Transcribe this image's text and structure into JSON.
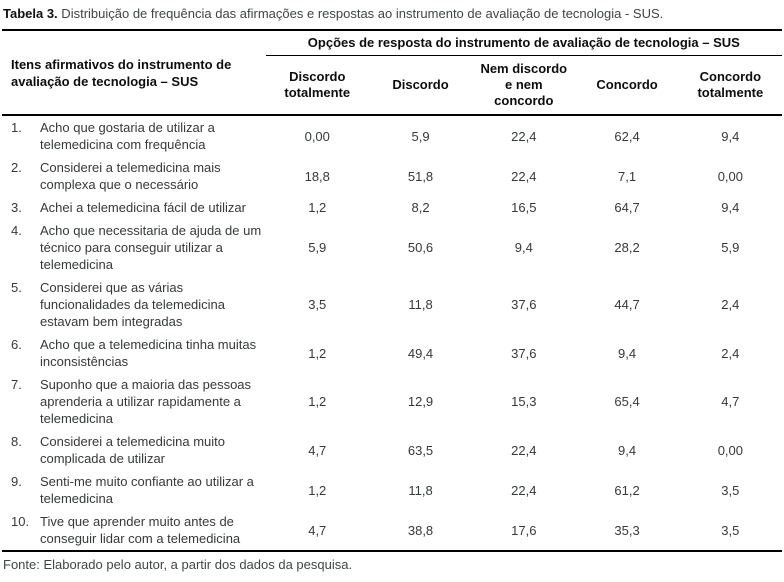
{
  "caption": {
    "label": "Tabela 3.",
    "text": " Distribuição de frequência das afirmações e respostas ao instrumento de avaliação de tecnologia - SUS."
  },
  "table": {
    "items_header": "Itens afirmativos do instrumento de avaliação de tecnologia – SUS",
    "options_header": "Opções de resposta do instrumento de avaliação de tecnologia – SUS",
    "columns": [
      "Discordo totalmente",
      "Discordo",
      "Nem discordo e nem concordo",
      "Concordo",
      "Concordo totalmente"
    ],
    "rows": [
      {
        "num": "1.",
        "item": "Acho que gostaria de utilizar a telemedicina com frequência",
        "values": [
          "0,00",
          "5,9",
          "22,4",
          "62,4",
          "9,4"
        ]
      },
      {
        "num": "2.",
        "item": "Considerei a telemedicina mais complexa que o necessário",
        "values": [
          "18,8",
          "51,8",
          "22,4",
          "7,1",
          "0,00"
        ]
      },
      {
        "num": "3.",
        "item": "Achei a telemedicina fácil de utilizar",
        "values": [
          "1,2",
          "8,2",
          "16,5",
          "64,7",
          "9,4"
        ]
      },
      {
        "num": "4.",
        "item": "Acho que necessitaria de ajuda de um técnico para conseguir utilizar a telemedicina",
        "values": [
          "5,9",
          "50,6",
          "9,4",
          "28,2",
          "5,9"
        ]
      },
      {
        "num": "5.",
        "item": "Considerei que as várias funcionalidades da telemedicina estavam bem integradas",
        "values": [
          "3,5",
          "11,8",
          "37,6",
          "44,7",
          "2,4"
        ]
      },
      {
        "num": "6.",
        "item": "Acho que a telemedicina tinha muitas inconsistências",
        "values": [
          "1,2",
          "49,4",
          "37,6",
          "9,4",
          "2,4"
        ]
      },
      {
        "num": "7.",
        "item": "Suponho que a maioria das pessoas aprenderia a utilizar rapidamente a telemedicina",
        "values": [
          "1,2",
          "12,9",
          "15,3",
          "65,4",
          "4,7"
        ]
      },
      {
        "num": "8.",
        "item": "Considerei a telemedicina muito complicada de utilizar",
        "values": [
          "4,7",
          "63,5",
          "22,4",
          "9,4",
          "0,00"
        ]
      },
      {
        "num": "9.",
        "item": "Senti-me muito confiante ao utilizar a telemedicina",
        "values": [
          "1,2",
          "11,8",
          "22,4",
          "61,2",
          "3,5"
        ]
      },
      {
        "num": "10.",
        "item": "Tive que aprender muito antes de conseguir lidar com a telemedicina",
        "values": [
          "4,7",
          "38,8",
          "17,6",
          "35,3",
          "3,5"
        ]
      }
    ]
  },
  "footer": "Fonte: Elaborado pelo autor, a partir dos dados da pesquisa.",
  "colors": {
    "background": "#ffffff",
    "text": "#3d463f",
    "heading_text": "#0d0d0d",
    "rule": "#000000"
  }
}
